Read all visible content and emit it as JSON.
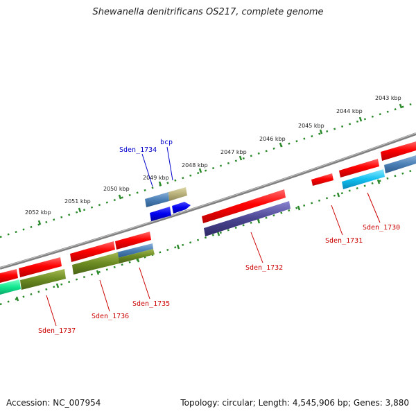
{
  "title": "Shewanella denitrificans OS217, complete genome",
  "footer": {
    "accession": "Accession: NC_007954",
    "summary": "Topology: circular; Length: 4,545,906 bp; Genes: 3,880"
  },
  "colors": {
    "backbone": "#808080",
    "ticks": "#2a8a2a",
    "label_red": "#cc0000",
    "label_blue": "#0000cc"
  },
  "scale": {
    "ticks": [
      {
        "label": "2043 kbp"
      },
      {
        "label": "2044 kbp"
      },
      {
        "label": "2045 kbp"
      },
      {
        "label": "2046 kbp"
      },
      {
        "label": "2047 kbp"
      },
      {
        "label": "2048 kbp"
      },
      {
        "label": "2049 kbp"
      },
      {
        "label": "2050 kbp"
      },
      {
        "label": "2051 kbp"
      },
      {
        "label": "2052 kbp"
      }
    ]
  },
  "genes": [
    {
      "name": "Sden_1730",
      "color": "red"
    },
    {
      "name": "Sden_1731",
      "color": "red"
    },
    {
      "name": "Sden_1732",
      "color": "red"
    },
    {
      "name": "Sden_1735",
      "color": "red"
    },
    {
      "name": "Sden_1736",
      "color": "red"
    },
    {
      "name": "Sden_1737",
      "color": "red"
    },
    {
      "name": "Sden_1734",
      "color": "blue"
    },
    {
      "name": "bcp",
      "color": "blue"
    }
  ]
}
